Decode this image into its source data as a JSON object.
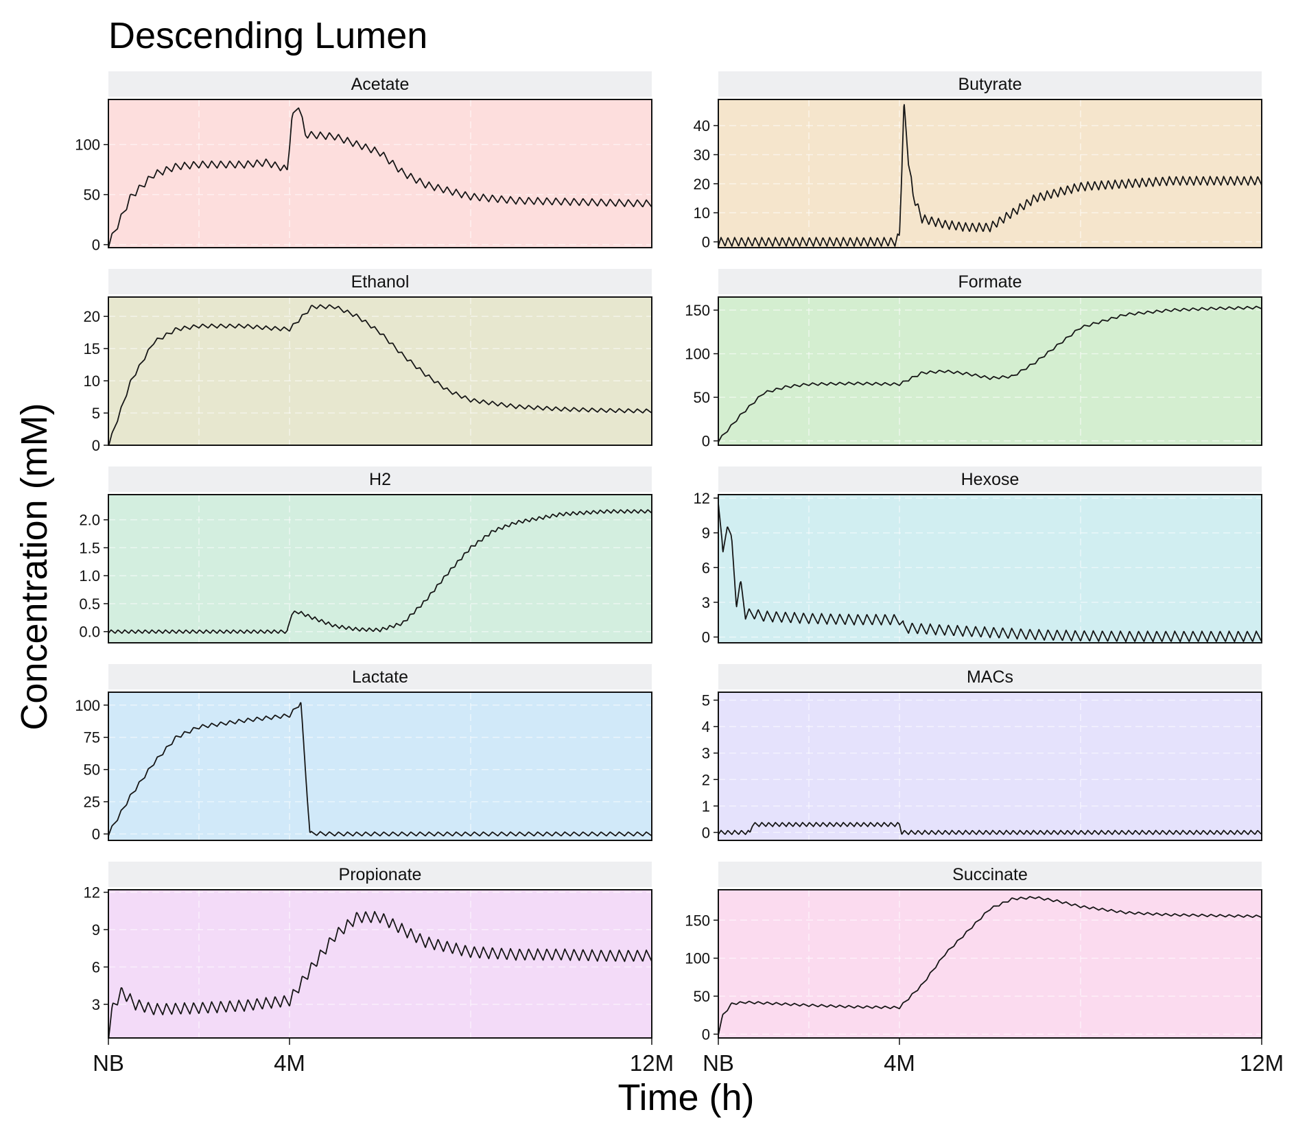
{
  "title": "Descending Lumen",
  "xlabel": "Time (h)",
  "ylabel": "Concentration (mM)",
  "x_ticks": [
    "NB",
    "4M",
    "12M"
  ],
  "chart_data": {
    "type": "line",
    "title": "Descending Lumen",
    "xlabel": "Time (h)",
    "ylabel": "Concentration (mM)",
    "x_tick_labels": [
      "NB",
      "4M",
      "12M"
    ],
    "x_tick_positions": [
      0,
      4,
      12
    ],
    "x_units": "months",
    "grid": true,
    "facets": [
      {
        "name": "Acetate",
        "color": "#fddedd",
        "ylim": [
          -3,
          145
        ],
        "yticks": [
          0,
          50,
          100
        ],
        "ytick_labels": [
          "0",
          "50",
          "100"
        ],
        "x": [
          0,
          0.5,
          1.0,
          1.5,
          2.0,
          3.0,
          3.5,
          3.95,
          4.05,
          4.2,
          4.35,
          5.0,
          6.0,
          6.5,
          7.0,
          8.0,
          9.0,
          10.0,
          11.0,
          12.0
        ],
        "y": [
          0,
          48,
          70,
          78,
          80,
          80,
          82,
          75,
          125,
          140,
          110,
          108,
          92,
          72,
          60,
          48,
          44,
          43,
          42,
          41
        ],
        "oscillation": {
          "amplitude": 7,
          "period_months": 0.2
        }
      },
      {
        "name": "Butyrate",
        "color": "#f5e5cc",
        "ylim": [
          -2,
          49
        ],
        "yticks": [
          0,
          10,
          20,
          30,
          40
        ],
        "ytick_labels": [
          "0",
          "10",
          "20",
          "30",
          "40"
        ],
        "x": [
          0,
          3.9,
          4.0,
          4.1,
          4.2,
          4.3,
          4.5,
          5.0,
          5.5,
          6.0,
          6.5,
          7.0,
          8.0,
          9.0,
          10.0,
          11.0,
          12.0
        ],
        "y": [
          0,
          0,
          2,
          47,
          28,
          16,
          8,
          6,
          5,
          5,
          10,
          15,
          19,
          20,
          21,
          21,
          21
        ],
        "oscillation": {
          "amplitude": 3,
          "period_months": 0.15
        }
      },
      {
        "name": "Ethanol",
        "color": "#e7e7cf",
        "ylim": [
          0,
          23
        ],
        "yticks": [
          0,
          5,
          10,
          15,
          20
        ],
        "ytick_labels": [
          "0",
          "5",
          "10",
          "15",
          "20"
        ],
        "x": [
          0,
          0.5,
          1.0,
          1.5,
          2.0,
          3.0,
          3.5,
          4.0,
          4.5,
          5.0,
          5.5,
          6.0,
          6.5,
          7.0,
          7.5,
          8.0,
          9.0,
          10.0,
          11.0,
          12.0
        ],
        "y": [
          0,
          10,
          16,
          18,
          18.5,
          18.5,
          18.2,
          18,
          21.5,
          21.5,
          20,
          17.5,
          14,
          11,
          8.5,
          7,
          6,
          5.6,
          5.4,
          5.3
        ],
        "oscillation": {
          "amplitude": 0.6,
          "period_months": 0.2
        }
      },
      {
        "name": "Formate",
        "color": "#d4eed0",
        "ylim": [
          -5,
          165
        ],
        "yticks": [
          0,
          50,
          100,
          150
        ],
        "ytick_labels": [
          "0",
          "50",
          "100",
          "150"
        ],
        "x": [
          0,
          0.5,
          1.0,
          1.5,
          2.0,
          3.0,
          4.0,
          4.5,
          5.0,
          5.5,
          6.0,
          6.5,
          7.0,
          7.5,
          8.0,
          9.0,
          10.0,
          11.0,
          12.0
        ],
        "y": [
          0,
          30,
          55,
          62,
          65,
          66,
          65,
          78,
          80,
          77,
          72,
          74,
          90,
          110,
          130,
          145,
          150,
          152,
          153
        ],
        "oscillation": {
          "amplitude": 3,
          "period_months": 0.2
        }
      },
      {
        "name": "H2",
        "color": "#d3eedf",
        "ylim": [
          -0.2,
          2.45
        ],
        "yticks": [
          0,
          0.5,
          1.0,
          1.5,
          2.0
        ],
        "ytick_labels": [
          "0.0",
          "0.5",
          "1.0",
          "1.5",
          "2.0"
        ],
        "x": [
          0,
          3.5,
          3.95,
          4.05,
          4.2,
          4.5,
          5.0,
          5.5,
          6.0,
          6.5,
          7.0,
          7.5,
          8.0,
          8.5,
          9.0,
          10.0,
          11.0,
          12.0
        ],
        "y": [
          0,
          0,
          0,
          0.33,
          0.35,
          0.25,
          0.1,
          0.04,
          0.03,
          0.15,
          0.55,
          1.05,
          1.5,
          1.8,
          1.95,
          2.1,
          2.15,
          2.15
        ],
        "oscillation": {
          "amplitude": 0.06,
          "period_months": 0.15
        }
      },
      {
        "name": "Hexose",
        "color": "#d1eef1",
        "ylim": [
          -0.5,
          12.3
        ],
        "yticks": [
          0,
          3,
          6,
          9,
          12
        ],
        "ytick_labels": [
          "0",
          "3",
          "6",
          "9",
          "12"
        ],
        "x": [
          0,
          0.1,
          0.2,
          0.3,
          0.4,
          0.5,
          0.6,
          0.8,
          1.0,
          2.0,
          3.0,
          4.0,
          4.1,
          5.0,
          6.0,
          7.0,
          8.0,
          9.0,
          12.0
        ],
        "y": [
          12,
          7,
          10,
          8,
          3,
          4.5,
          2,
          2,
          1.8,
          1.6,
          1.5,
          1.5,
          0.8,
          0.6,
          0.4,
          0.2,
          0.1,
          0.05,
          0.05
        ],
        "oscillation": {
          "amplitude": 0.9,
          "period_months": 0.2
        }
      },
      {
        "name": "Lactate",
        "color": "#d1e9f9",
        "ylim": [
          -5,
          110
        ],
        "yticks": [
          0,
          25,
          50,
          75,
          100
        ],
        "ytick_labels": [
          "0",
          "25",
          "50",
          "75",
          "100"
        ],
        "x": [
          0,
          0.5,
          1.0,
          1.5,
          2.0,
          3.0,
          3.5,
          4.0,
          4.25,
          4.35,
          4.45,
          5.0,
          12.0
        ],
        "y": [
          0,
          30,
          55,
          75,
          83,
          88,
          90,
          92,
          102,
          50,
          0.5,
          0,
          0
        ],
        "oscillation": {
          "amplitude": 3,
          "period_months": 0.2
        }
      },
      {
        "name": "MACs",
        "color": "#e5e2fc",
        "ylim": [
          -0.3,
          5.3
        ],
        "yticks": [
          0,
          1,
          2,
          3,
          4,
          5
        ],
        "ytick_labels": [
          "0",
          "1",
          "2",
          "3",
          "4",
          "5"
        ],
        "x": [
          0,
          0.7,
          0.75,
          4.0,
          4.05,
          12.0
        ],
        "y": [
          0,
          0,
          0.3,
          0.3,
          0,
          0
        ],
        "oscillation": {
          "amplitude": 0.15,
          "period_months": 0.15
        }
      },
      {
        "name": "Propionate",
        "color": "#f3dbf8",
        "ylim": [
          0.3,
          12.2
        ],
        "yticks": [
          3,
          6,
          9,
          12
        ],
        "ytick_labels": [
          "3",
          "6",
          "9",
          "12"
        ],
        "x": [
          0,
          0.1,
          0.3,
          0.6,
          1.0,
          2.0,
          3.0,
          4.0,
          4.5,
          5.0,
          5.5,
          6.0,
          6.5,
          7.0,
          8.0,
          9.0,
          10.0,
          11.0,
          12.0
        ],
        "y": [
          0.5,
          2.8,
          4.0,
          3.0,
          2.6,
          2.7,
          2.9,
          3.3,
          6.0,
          8.5,
          10.0,
          10.0,
          9.0,
          8.0,
          7.2,
          7.0,
          7.0,
          6.9,
          6.9
        ],
        "oscillation": {
          "amplitude": 0.9,
          "period_months": 0.2
        }
      },
      {
        "name": "Succinate",
        "color": "#fbdbef",
        "ylim": [
          -5,
          190
        ],
        "yticks": [
          0,
          50,
          100,
          150
        ],
        "ytick_labels": [
          "0",
          "50",
          "100",
          "150"
        ],
        "x": [
          0,
          0.1,
          0.3,
          0.6,
          1.0,
          2.0,
          3.0,
          4.0,
          4.5,
          5.0,
          5.5,
          6.0,
          6.5,
          7.0,
          7.5,
          8.0,
          9.0,
          10.0,
          11.0,
          12.0
        ],
        "y": [
          0,
          25,
          40,
          42,
          41,
          38,
          36,
          35,
          65,
          105,
          135,
          165,
          178,
          180,
          175,
          168,
          160,
          157,
          156,
          155
        ],
        "oscillation": {
          "amplitude": 3,
          "period_months": 0.2
        }
      }
    ]
  }
}
